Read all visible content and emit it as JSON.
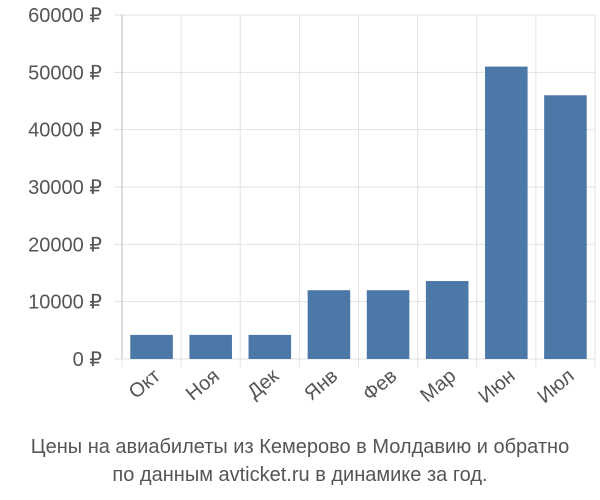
{
  "chart_data": {
    "type": "bar",
    "categories": [
      "Окт",
      "Ноя",
      "Дек",
      "Янв",
      "Фев",
      "Мар",
      "Июн",
      "Июл"
    ],
    "values": [
      4200,
      4200,
      4200,
      12000,
      12000,
      13600,
      51000,
      46000
    ],
    "ylim": [
      0,
      60000
    ],
    "yticks": [
      0,
      10000,
      20000,
      30000,
      40000,
      50000,
      60000
    ],
    "ytick_labels": [
      "0 ₽",
      "10000 ₽",
      "20000 ₽",
      "30000 ₽",
      "40000 ₽",
      "50000 ₽",
      "60000 ₽"
    ],
    "grid": true,
    "legend": "none",
    "bar_color": "#4c78a8",
    "caption_line1": "Цены на авиабилеты из Кемерово в Молдавию и обратно",
    "caption_line2": "по данным avticket.ru в динамике за год."
  }
}
